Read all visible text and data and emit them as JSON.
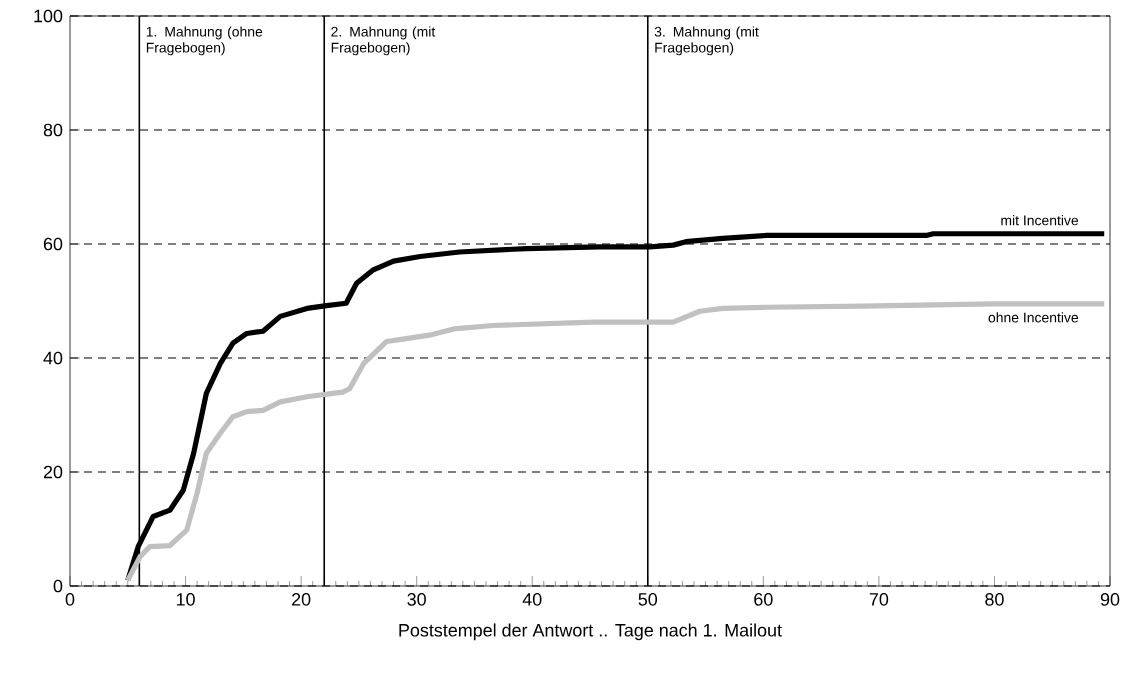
{
  "chart_data": {
    "type": "line",
    "xlabel": "Poststempel der Antwort .. Tage nach 1. Mailout",
    "xlim": [
      0,
      90
    ],
    "xticks": [
      0,
      10,
      20,
      30,
      40,
      50,
      60,
      70,
      80,
      90
    ],
    "ylim": [
      0,
      100
    ],
    "yticks": [
      0,
      20,
      40,
      60,
      80,
      100
    ],
    "grid": "y",
    "legend": false,
    "marker": "none",
    "line_style": "solid",
    "series": [
      {
        "name": "mit Incentive",
        "color": "#000000",
        "x": [
          5,
          5.9,
          7.2,
          8.65,
          9.8,
          10.7,
          11.8,
          13,
          14.1,
          15.3,
          16.7,
          18.2,
          20.5,
          22.2,
          23.9,
          24.8,
          26.2,
          28,
          30.3,
          33.7,
          39.5,
          45.8,
          50.2,
          52.2,
          53.3,
          56.5,
          60.3,
          74.1,
          74.7,
          89.5
        ],
        "values": [
          1,
          6.9,
          12.2,
          13.3,
          16.8,
          23.3,
          33.8,
          39,
          42.6,
          44.3,
          44.7,
          47.3,
          48.7,
          49.2,
          49.6,
          53.1,
          55.4,
          57,
          57.8,
          58.6,
          59.2,
          59.5,
          59.5,
          59.8,
          60.4,
          61,
          61.5,
          61.5,
          61.8,
          61.8
        ]
      },
      {
        "name": "ohne Incentive",
        "color": "#c0c0c0",
        "x": [
          5,
          6.05,
          6.9,
          8.65,
          10.1,
          11,
          11.8,
          13,
          14.1,
          15.3,
          16.7,
          18.2,
          20.5,
          23.6,
          24.2,
          25.4,
          27.4,
          29.1,
          31.1,
          33.2,
          36.6,
          45.3,
          52.2,
          54.5,
          56.5,
          60.3,
          68.6,
          79.9,
          89.5
        ],
        "values": [
          1,
          5.1,
          6.9,
          7.1,
          9.8,
          16.3,
          23.3,
          26.8,
          29.7,
          30.6,
          30.8,
          32.3,
          33.2,
          34,
          34.6,
          39,
          42.9,
          43.4,
          44,
          45.1,
          45.7,
          46.3,
          46.3,
          48.2,
          48.7,
          48.9,
          49.1,
          49.5,
          49.5
        ]
      }
    ],
    "ref_lines": [
      {
        "axis": "x",
        "value": 6,
        "label": "1. Mahnung (ohne Fragebogen)",
        "color": "#000000",
        "line_style": "solid"
      },
      {
        "axis": "x",
        "value": 22,
        "label": "2. Mahnung (mit Fragebogen)",
        "color": "#000000",
        "line_style": "solid"
      },
      {
        "axis": "x",
        "value": 50,
        "label": "3. Mahnung (mit Fragebogen)",
        "color": "#000000",
        "line_style": "solid"
      }
    ]
  }
}
